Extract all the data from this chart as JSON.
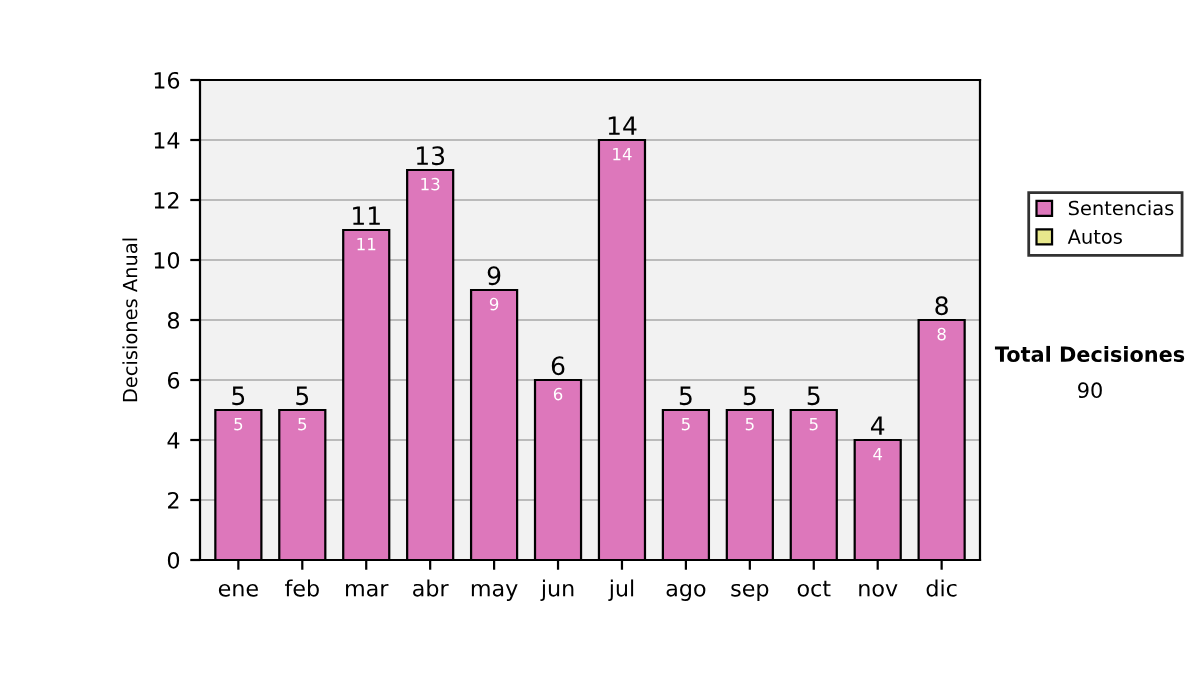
{
  "chart_data": {
    "type": "bar",
    "ylabel": "Decisiones Anual",
    "categories": [
      "ene",
      "feb",
      "mar",
      "abr",
      "may",
      "jun",
      "jul",
      "ago",
      "sep",
      "oct",
      "nov",
      "dic"
    ],
    "series": [
      {
        "name": "Sentencias",
        "color": "#dd77bb",
        "values": [
          5,
          5,
          11,
          13,
          9,
          6,
          14,
          5,
          5,
          5,
          4,
          8
        ]
      },
      {
        "name": "Autos",
        "color": "#e8e88c",
        "values": [
          null,
          null,
          null,
          null,
          null,
          null,
          null,
          null,
          null,
          null,
          null,
          null
        ]
      }
    ],
    "ylim": [
      0,
      16
    ],
    "yticks": [
      0,
      2,
      4,
      6,
      8,
      10,
      12,
      14,
      16
    ],
    "stacked": true,
    "totals": [
      "5",
      "5",
      "11",
      "13",
      "9",
      "6",
      "14",
      "5",
      "5",
      "5",
      "4",
      "8"
    ],
    "grid": "y",
    "legend": "right",
    "data_labels": true,
    "annotations": [
      "Total Decisiones",
      "90"
    ]
  }
}
